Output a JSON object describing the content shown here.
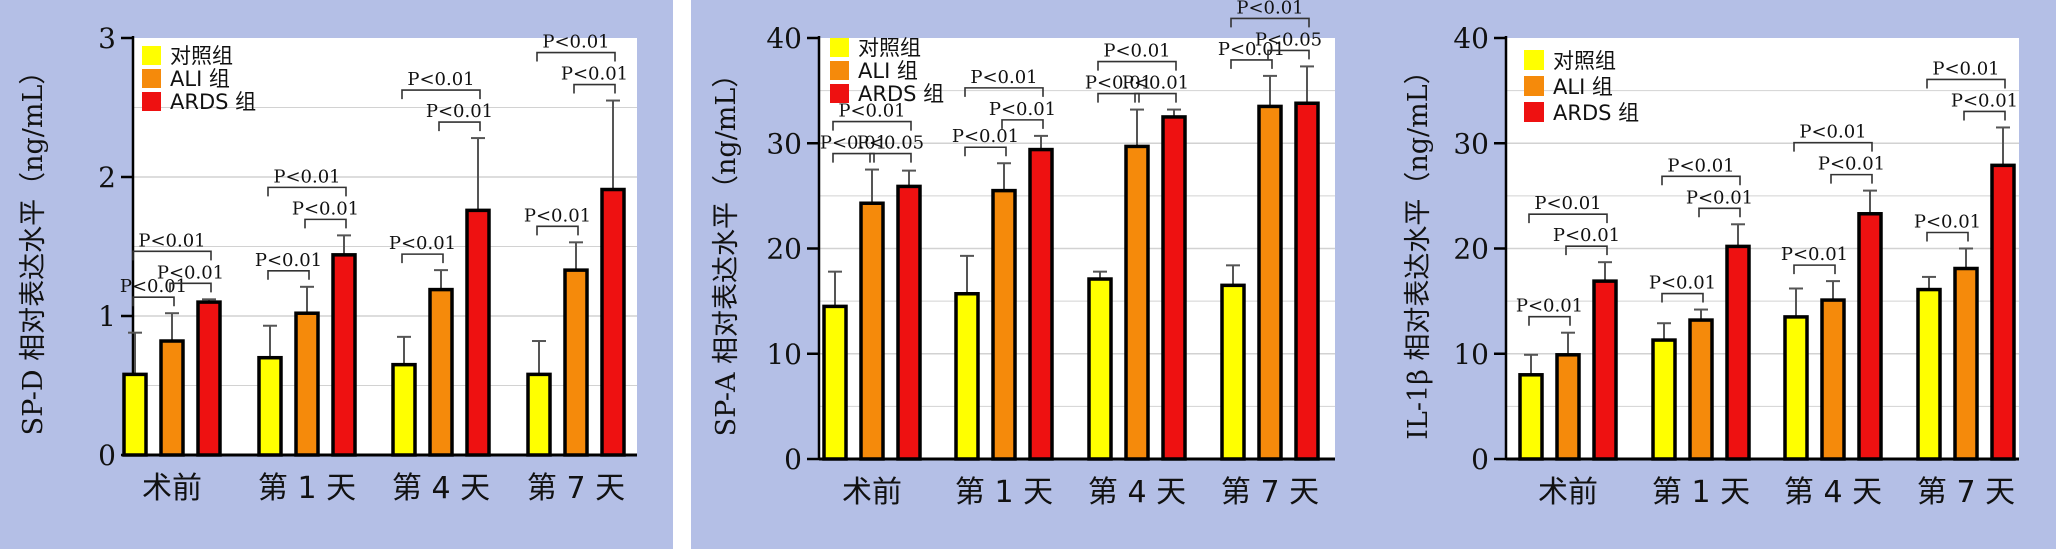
{
  "chart_data": [
    {
      "type": "bar",
      "ylabel": "SP-D 相对表达水平（ng/mL）",
      "ylim": [
        0,
        3
      ],
      "yticks": [
        "0",
        "1",
        "2",
        "3"
      ],
      "grid": true,
      "legend_position": "top-left",
      "categories": [
        "术前",
        "第 1 天",
        "第 4 天",
        "第 7 天"
      ],
      "series": [
        {
          "name": "对照组",
          "color": "#ffff00",
          "values": [
            0.58,
            0.7,
            0.65,
            0.58
          ],
          "errors": [
            0.3,
            0.23,
            0.2,
            0.24
          ]
        },
        {
          "name": "ALI 组",
          "color": "#f58a0b",
          "values": [
            0.82,
            1.02,
            1.19,
            1.33
          ],
          "errors": [
            0.2,
            0.19,
            0.14,
            0.2
          ]
        },
        {
          "name": "ARDS 组",
          "color": "#ee1111",
          "values": [
            1.1,
            1.44,
            1.76,
            1.91
          ],
          "errors": [
            0.02,
            0.14,
            0.52,
            0.64
          ]
        }
      ],
      "annotations": [
        {
          "group": 0,
          "from": 0,
          "to": 1,
          "level": 1,
          "text": "P<0.01"
        },
        {
          "group": 0,
          "from": 1,
          "to": 2,
          "level": 1,
          "text": "P<0.01"
        },
        {
          "group": 0,
          "from": 0,
          "to": 2,
          "level": 2,
          "text": "P<0.01"
        },
        {
          "group": 1,
          "from": 0,
          "to": 1,
          "level": 1,
          "text": "P<0.01"
        },
        {
          "group": 1,
          "from": 1,
          "to": 2,
          "level": 1,
          "text": "P<0.01"
        },
        {
          "group": 1,
          "from": 0,
          "to": 2,
          "level": 2,
          "text": "P<0.01"
        },
        {
          "group": 2,
          "from": 0,
          "to": 1,
          "level": 1,
          "text": "P<0.01"
        },
        {
          "group": 2,
          "from": 1,
          "to": 2,
          "level": 1,
          "text": "P<0.01"
        },
        {
          "group": 2,
          "from": 0,
          "to": 2,
          "level": 2,
          "text": "P<0.01"
        },
        {
          "group": 3,
          "from": 0,
          "to": 1,
          "level": 1,
          "text": "P<0.01"
        },
        {
          "group": 3,
          "from": 1,
          "to": 2,
          "level": 1,
          "text": "P<0.01"
        },
        {
          "group": 3,
          "from": 0,
          "to": 2,
          "level": 2,
          "text": "P<0.01"
        }
      ]
    },
    {
      "type": "bar",
      "ylabel": "SP-A 相对表达水平（ng/mL）",
      "ylim": [
        0,
        40
      ],
      "yticks": [
        "0",
        "10",
        "20",
        "30",
        "40"
      ],
      "grid": true,
      "legend_position": "top-left",
      "categories": [
        "术前",
        "第 1 天",
        "第 4 天",
        "第 7 天"
      ],
      "series": [
        {
          "name": "对照组",
          "color": "#ffff00",
          "values": [
            14.5,
            15.7,
            17.1,
            16.5
          ],
          "errors": [
            3.3,
            3.6,
            0.7,
            1.9
          ]
        },
        {
          "name": "ALI 组",
          "color": "#f58a0b",
          "values": [
            24.3,
            25.5,
            29.7,
            33.5
          ],
          "errors": [
            3.2,
            2.6,
            3.5,
            2.9
          ]
        },
        {
          "name": "ARDS 组",
          "color": "#ee1111",
          "values": [
            25.9,
            29.4,
            32.5,
            33.8
          ],
          "errors": [
            1.5,
            1.3,
            0.7,
            3.5
          ]
        }
      ],
      "annotations": [
        {
          "group": 0,
          "from": 0,
          "to": 1,
          "level": 1,
          "text": "P<0.01"
        },
        {
          "group": 0,
          "from": 1,
          "to": 2,
          "level": 1,
          "text": "P<0.05"
        },
        {
          "group": 0,
          "from": 0,
          "to": 2,
          "level": 2,
          "text": "P<0.01"
        },
        {
          "group": 1,
          "from": 0,
          "to": 1,
          "level": 1,
          "text": "P<0.01"
        },
        {
          "group": 1,
          "from": 1,
          "to": 2,
          "level": 1,
          "text": "P<0.01"
        },
        {
          "group": 1,
          "from": 0,
          "to": 2,
          "level": 2,
          "text": "P<0.01"
        },
        {
          "group": 2,
          "from": 0,
          "to": 1,
          "level": 1,
          "text": "P<0.01"
        },
        {
          "group": 2,
          "from": 1,
          "to": 2,
          "level": 1,
          "text": "P<0.01"
        },
        {
          "group": 2,
          "from": 0,
          "to": 2,
          "level": 2,
          "text": "P<0.01"
        },
        {
          "group": 3,
          "from": 0,
          "to": 1,
          "level": 1,
          "text": "P<0.01"
        },
        {
          "group": 3,
          "from": 1,
          "to": 2,
          "level": 1,
          "text": "P<0.05"
        },
        {
          "group": 3,
          "from": 0,
          "to": 2,
          "level": 2,
          "text": "P<0.01"
        }
      ]
    },
    {
      "type": "bar",
      "ylabel": "IL-1β 相对表达水平（ng/mL）",
      "ylim": [
        0,
        40
      ],
      "yticks": [
        "0",
        "10",
        "20",
        "30",
        "40"
      ],
      "grid": true,
      "legend_position": "top-left",
      "categories": [
        "术前",
        "第 1 天",
        "第 4 天",
        "第 7 天"
      ],
      "series": [
        {
          "name": "对照组",
          "color": "#ffff00",
          "values": [
            8.0,
            11.3,
            13.5,
            16.1
          ],
          "errors": [
            1.9,
            1.6,
            2.7,
            1.2
          ]
        },
        {
          "name": "ALI 组",
          "color": "#f58a0b",
          "values": [
            9.9,
            13.2,
            15.1,
            18.1
          ],
          "errors": [
            2.1,
            1.0,
            1.8,
            1.9
          ]
        },
        {
          "name": "ARDS 组",
          "color": "#ee1111",
          "values": [
            16.9,
            20.2,
            23.3,
            27.9
          ],
          "errors": [
            1.8,
            2.1,
            2.2,
            3.6
          ]
        }
      ],
      "annotations": [
        {
          "group": 0,
          "from": 0,
          "to": 1,
          "level": 1,
          "text": "P<0.01"
        },
        {
          "group": 0,
          "from": 1,
          "to": 2,
          "level": 1,
          "text": "P<0.01"
        },
        {
          "group": 0,
          "from": 0,
          "to": 2,
          "level": 2,
          "text": "P<0.01"
        },
        {
          "group": 1,
          "from": 0,
          "to": 1,
          "level": 1,
          "text": "P<0.01"
        },
        {
          "group": 1,
          "from": 1,
          "to": 2,
          "level": 1,
          "text": "P<0.01"
        },
        {
          "group": 1,
          "from": 0,
          "to": 2,
          "level": 2,
          "text": "P<0.01"
        },
        {
          "group": 2,
          "from": 0,
          "to": 1,
          "level": 1,
          "text": "P<0.01"
        },
        {
          "group": 2,
          "from": 1,
          "to": 2,
          "level": 1,
          "text": "P<0.01"
        },
        {
          "group": 2,
          "from": 0,
          "to": 2,
          "level": 2,
          "text": "P<0.01"
        },
        {
          "group": 3,
          "from": 0,
          "to": 1,
          "level": 1,
          "text": "P<0.01"
        },
        {
          "group": 3,
          "from": 1,
          "to": 2,
          "level": 1,
          "text": "P<0.01"
        },
        {
          "group": 3,
          "from": 0,
          "to": 2,
          "level": 2,
          "text": "P<0.01"
        }
      ]
    }
  ]
}
